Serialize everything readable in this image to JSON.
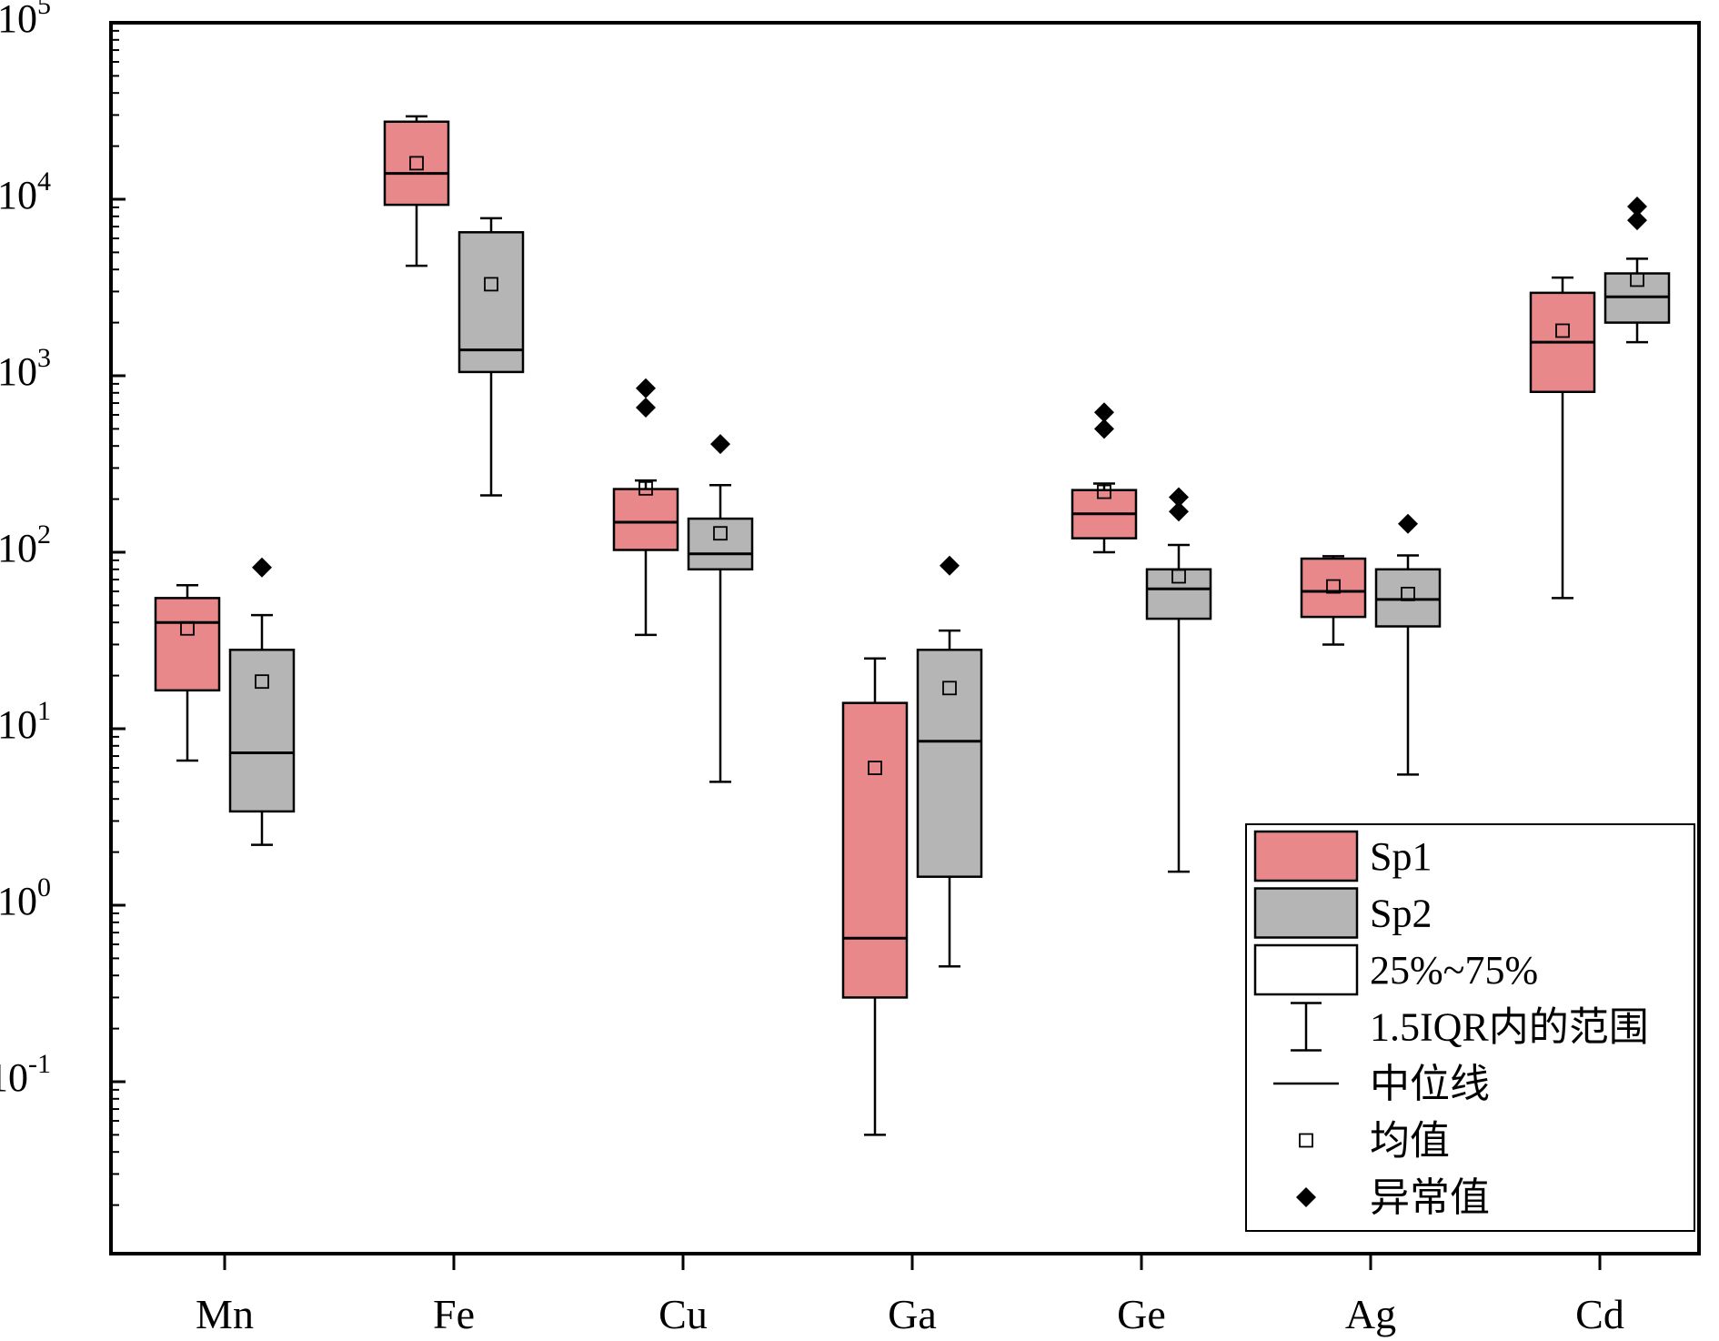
{
  "chart_data": {
    "type": "box",
    "title": "",
    "xlabel": "",
    "ylabel": "",
    "yscale": "log",
    "ylim": [
      0.01,
      100000
    ],
    "yticks": [
      {
        "value": 100000,
        "base": "10",
        "exp": "5"
      },
      {
        "value": 10000,
        "base": "10",
        "exp": "4"
      },
      {
        "value": 1000,
        "base": "10",
        "exp": "3"
      },
      {
        "value": 100,
        "base": "10",
        "exp": "2"
      },
      {
        "value": 10,
        "base": "10",
        "exp": "1"
      },
      {
        "value": 1,
        "base": "10",
        "exp": "0"
      },
      {
        "value": 0.1,
        "base": "10",
        "exp": "-1"
      }
    ],
    "categories": [
      "Mn",
      "Fe",
      "Cu",
      "Ga",
      "Ge",
      "Ag",
      "Cd"
    ],
    "grid": false,
    "legend_position": "bottom-right",
    "series": [
      {
        "name": "Sp1",
        "color": "#E8888A",
        "boxes": [
          {
            "whisker_low": 6.6,
            "q1": 16.5,
            "median": 40,
            "q3": 55,
            "whisker_high": 65,
            "mean": 37,
            "outliers": []
          },
          {
            "whisker_low": 4200,
            "q1": 9300,
            "median": 14000,
            "q3": 27500,
            "whisker_high": 29500,
            "mean": 16000,
            "outliers": []
          },
          {
            "whisker_low": 34,
            "q1": 103,
            "median": 148,
            "q3": 228,
            "whisker_high": 255,
            "mean": 230,
            "outliers": [
              660,
              850
            ]
          },
          {
            "whisker_low": 0.05,
            "q1": 0.3,
            "median": 0.65,
            "q3": 14,
            "whisker_high": 25,
            "mean": 6,
            "outliers": []
          },
          {
            "whisker_low": 100,
            "q1": 120,
            "median": 165,
            "q3": 225,
            "whisker_high": 245,
            "mean": 220,
            "outliers": [
              500,
              620
            ]
          },
          {
            "whisker_low": 30,
            "q1": 43,
            "median": 60,
            "q3": 92,
            "whisker_high": 95,
            "mean": 64,
            "outliers": []
          },
          {
            "whisker_low": 55,
            "q1": 810,
            "median": 1550,
            "q3": 2950,
            "whisker_high": 3600,
            "mean": 1800,
            "outliers": []
          }
        ]
      },
      {
        "name": "Sp2",
        "color": "#B5B5B5",
        "boxes": [
          {
            "whisker_low": 2.2,
            "q1": 3.4,
            "median": 7.3,
            "q3": 28,
            "whisker_high": 44,
            "mean": 18.5,
            "outliers": [
              82
            ]
          },
          {
            "whisker_low": 210,
            "q1": 1050,
            "median": 1400,
            "q3": 6500,
            "whisker_high": 7800,
            "mean": 3300,
            "outliers": []
          },
          {
            "whisker_low": 5,
            "q1": 80,
            "median": 98,
            "q3": 155,
            "whisker_high": 240,
            "mean": 128,
            "outliers": [
              410
            ]
          },
          {
            "whisker_low": 0.45,
            "q1": 1.45,
            "median": 8.5,
            "q3": 28,
            "whisker_high": 36,
            "mean": 17,
            "outliers": [
              84
            ]
          },
          {
            "whisker_low": 1.55,
            "q1": 42,
            "median": 62,
            "q3": 80,
            "whisker_high": 110,
            "mean": 73,
            "outliers": [
              170,
              205
            ]
          },
          {
            "whisker_low": 5.5,
            "q1": 38,
            "median": 54,
            "q3": 80,
            "whisker_high": 96,
            "mean": 58,
            "outliers": [
              145
            ]
          },
          {
            "whisker_low": 1550,
            "q1": 2000,
            "median": 2800,
            "q3": 3800,
            "whisker_high": 4600,
            "mean": 3500,
            "outliers": [
              7600,
              9100
            ]
          }
        ]
      }
    ],
    "legend": [
      {
        "kind": "swatch",
        "label": "Sp1",
        "color": "#E8888A"
      },
      {
        "kind": "swatch",
        "label": "Sp2",
        "color": "#B5B5B5"
      },
      {
        "kind": "swatch",
        "label": "25%~75%",
        "color": "#FFFFFF"
      },
      {
        "kind": "whisker",
        "label": "1.5IQR内的范围"
      },
      {
        "kind": "median",
        "label": "中位线"
      },
      {
        "kind": "mean",
        "label": "均值"
      },
      {
        "kind": "outlier",
        "label": "异常值"
      }
    ]
  }
}
